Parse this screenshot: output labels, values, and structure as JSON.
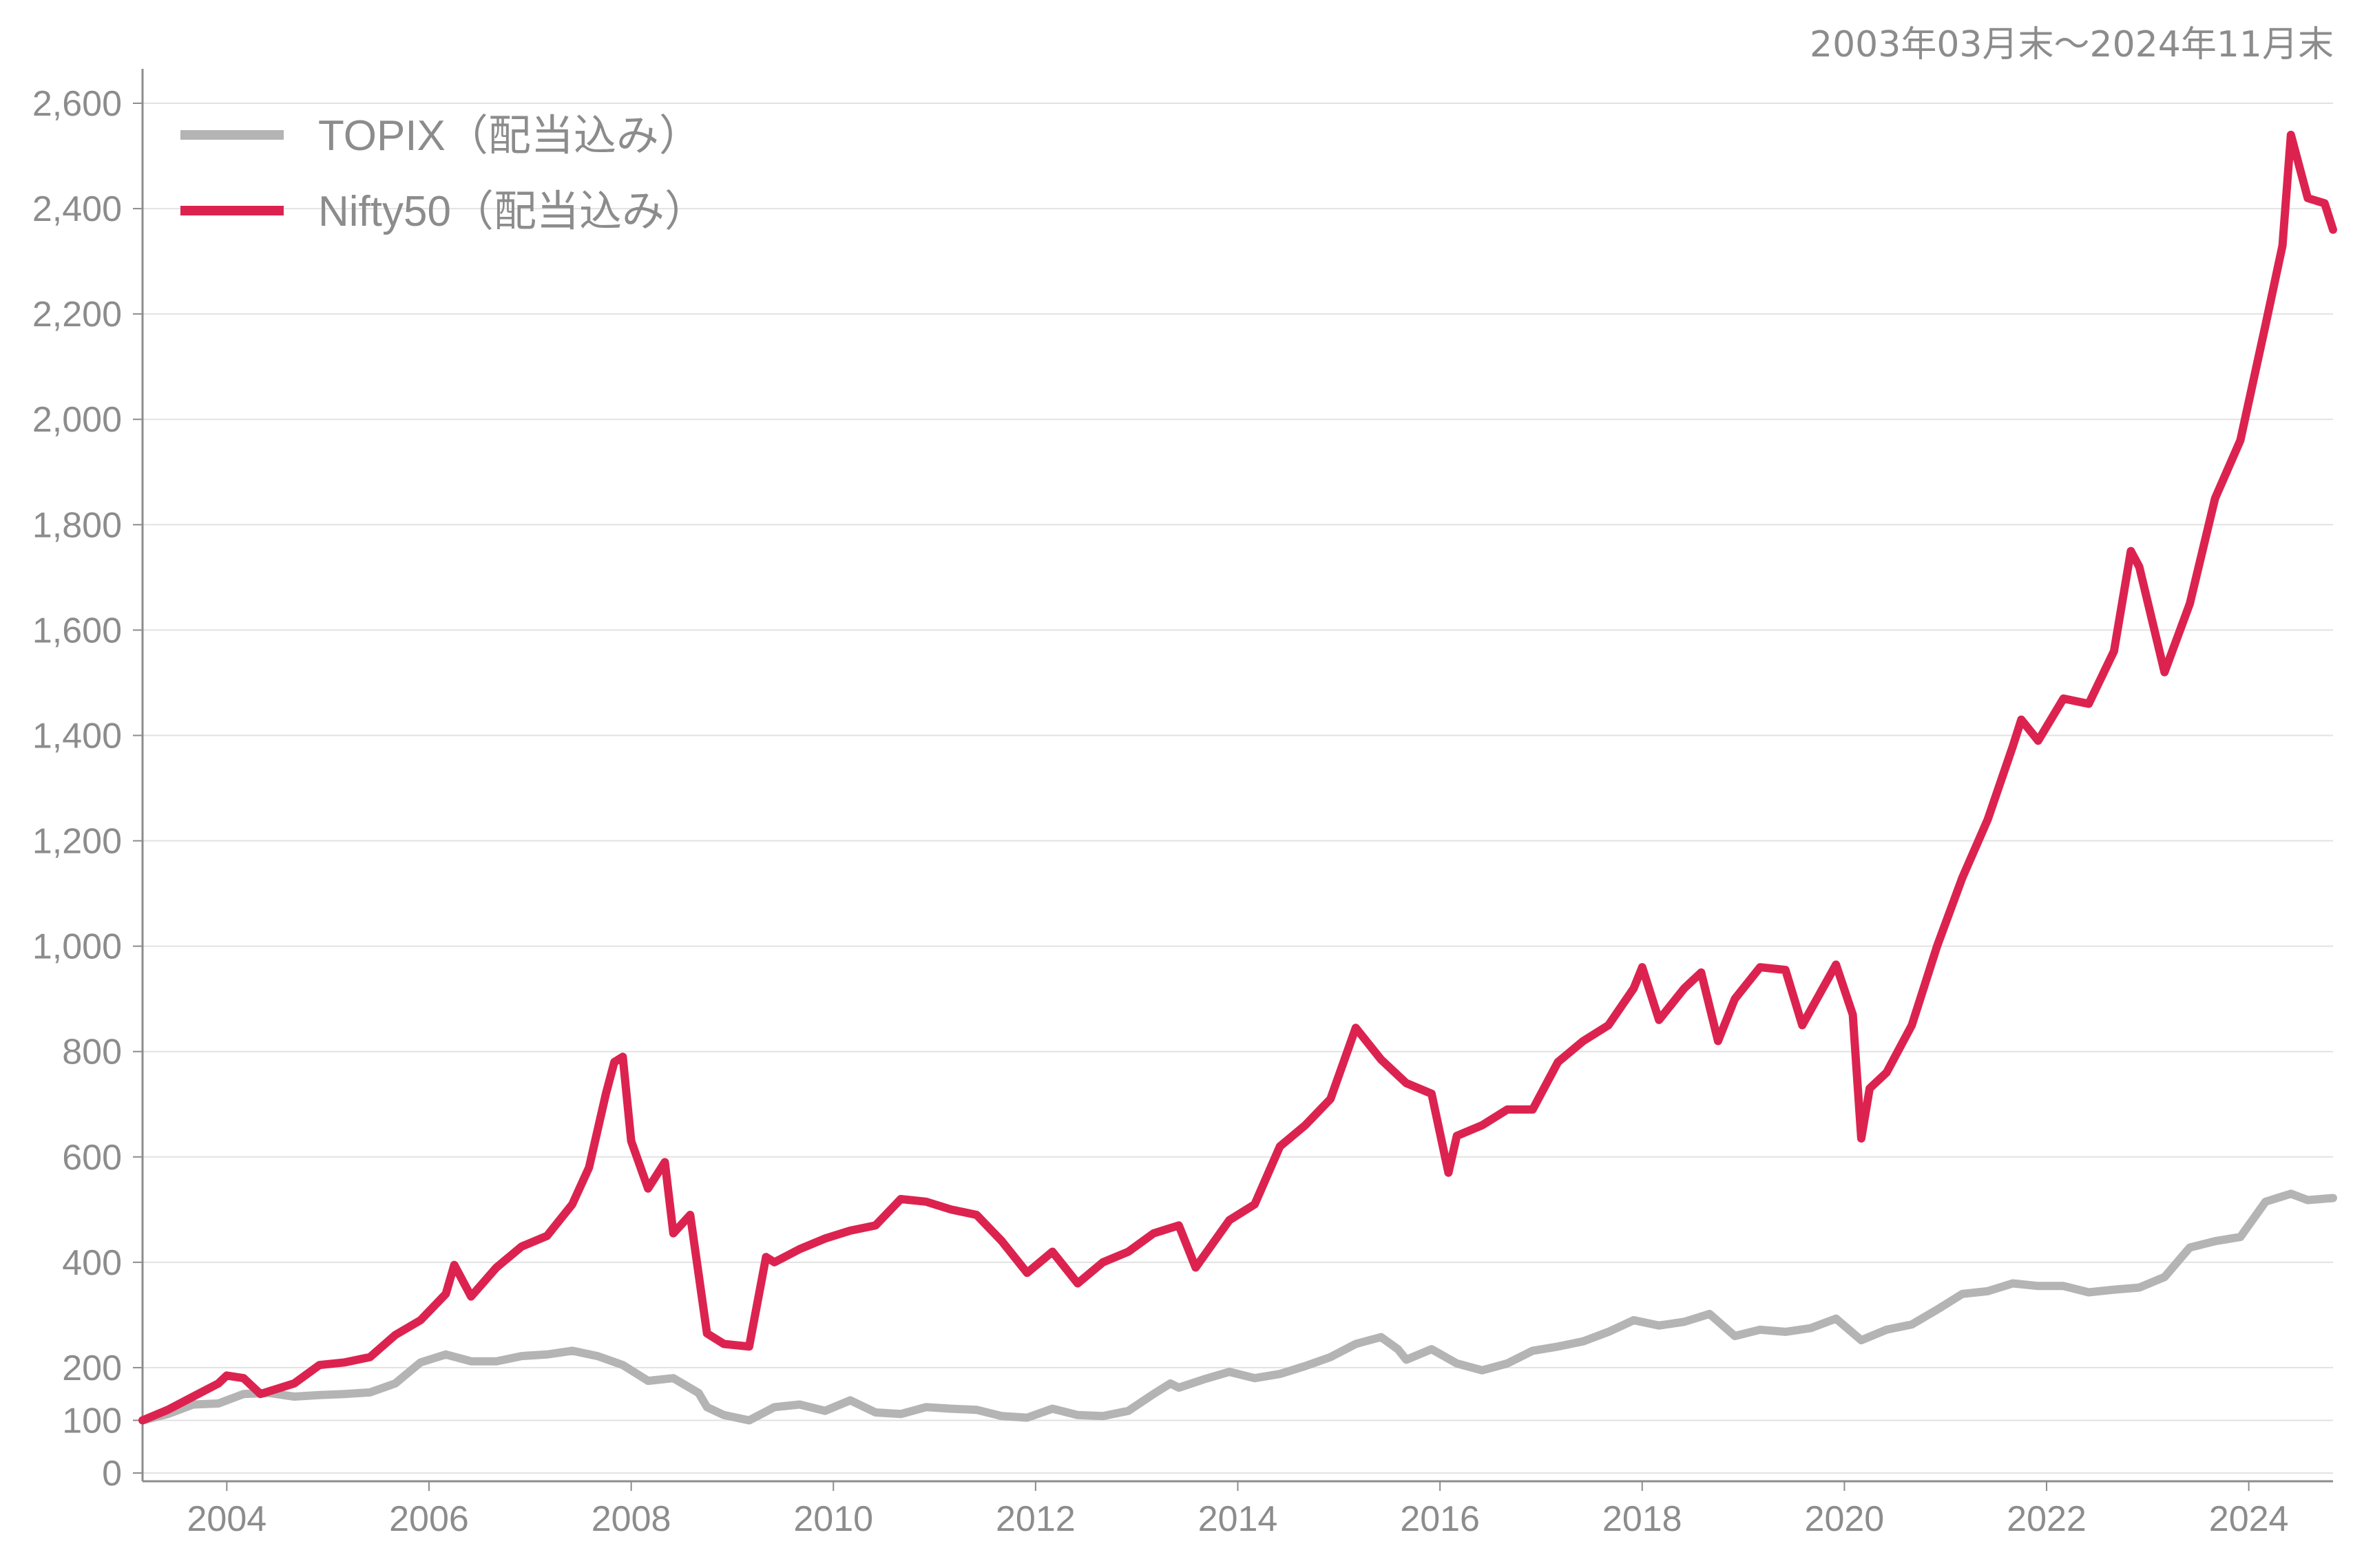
{
  "period_note": "2003年03月末〜2024年11月末",
  "colors": {
    "topix": "#b4b4b4",
    "nifty": "#dc2350",
    "grid": "#e2e2e2",
    "axis": "#8c8c8c",
    "text": "#8c8c8c"
  },
  "chart_data": {
    "type": "line",
    "title": "",
    "xlabel": "",
    "ylabel": "",
    "xlim": [
      "2003-03",
      "2024-11"
    ],
    "ylim": [
      0,
      2650
    ],
    "grid": "horizontal",
    "legend_position": "top-left",
    "y_ticks": [
      0,
      100,
      200,
      400,
      600,
      800,
      1000,
      1200,
      1400,
      1600,
      1800,
      2000,
      2200,
      2400,
      2600
    ],
    "y_tick_labels": [
      "0",
      "100",
      "200",
      "400",
      "600",
      "800",
      "1,000",
      "1,200",
      "1,400",
      "1,600",
      "1,800",
      "2,000",
      "2,200",
      "2,400",
      "2,600"
    ],
    "x_tick_labels": [
      "2004",
      "2006",
      "2008",
      "2010",
      "2012",
      "2014",
      "2016",
      "2018",
      "2020",
      "2022",
      "2024"
    ],
    "series": [
      {
        "name": "TOPIX（配当込み）",
        "color": "#b4b4b4",
        "points": [
          [
            "2003-03",
            100
          ],
          [
            "2003-06",
            112
          ],
          [
            "2003-09",
            130
          ],
          [
            "2003-12",
            132
          ],
          [
            "2004-03",
            150
          ],
          [
            "2004-06",
            152
          ],
          [
            "2004-09",
            145
          ],
          [
            "2004-12",
            148
          ],
          [
            "2005-03",
            150
          ],
          [
            "2005-06",
            153
          ],
          [
            "2005-09",
            170
          ],
          [
            "2005-12",
            210
          ],
          [
            "2006-03",
            225
          ],
          [
            "2006-06",
            212
          ],
          [
            "2006-09",
            212
          ],
          [
            "2006-12",
            222
          ],
          [
            "2007-03",
            225
          ],
          [
            "2007-06",
            232
          ],
          [
            "2007-09",
            222
          ],
          [
            "2007-12",
            205
          ],
          [
            "2008-03",
            175
          ],
          [
            "2008-06",
            180
          ],
          [
            "2008-09",
            152
          ],
          [
            "2008-10",
            125
          ],
          [
            "2008-12",
            110
          ],
          [
            "2009-03",
            100
          ],
          [
            "2009-06",
            125
          ],
          [
            "2009-09",
            130
          ],
          [
            "2009-12",
            118
          ],
          [
            "2010-03",
            138
          ],
          [
            "2010-06",
            115
          ],
          [
            "2010-09",
            112
          ],
          [
            "2010-12",
            125
          ],
          [
            "2011-03",
            122
          ],
          [
            "2011-06",
            120
          ],
          [
            "2011-09",
            108
          ],
          [
            "2011-12",
            105
          ],
          [
            "2012-03",
            122
          ],
          [
            "2012-06",
            110
          ],
          [
            "2012-09",
            108
          ],
          [
            "2012-12",
            118
          ],
          [
            "2013-03",
            150
          ],
          [
            "2013-05",
            170
          ],
          [
            "2013-06",
            162
          ],
          [
            "2013-09",
            178
          ],
          [
            "2013-12",
            192
          ],
          [
            "2014-03",
            180
          ],
          [
            "2014-06",
            188
          ],
          [
            "2014-09",
            203
          ],
          [
            "2014-12",
            220
          ],
          [
            "2015-03",
            245
          ],
          [
            "2015-06",
            258
          ],
          [
            "2015-08",
            235
          ],
          [
            "2015-09",
            215
          ],
          [
            "2015-12",
            235
          ],
          [
            "2016-03",
            208
          ],
          [
            "2016-06",
            195
          ],
          [
            "2016-09",
            208
          ],
          [
            "2016-12",
            232
          ],
          [
            "2017-03",
            240
          ],
          [
            "2017-06",
            250
          ],
          [
            "2017-09",
            268
          ],
          [
            "2017-12",
            290
          ],
          [
            "2018-03",
            280
          ],
          [
            "2018-06",
            287
          ],
          [
            "2018-09",
            302
          ],
          [
            "2018-12",
            260
          ],
          [
            "2019-03",
            272
          ],
          [
            "2019-06",
            268
          ],
          [
            "2019-09",
            275
          ],
          [
            "2019-12",
            293
          ],
          [
            "2020-03",
            252
          ],
          [
            "2020-06",
            272
          ],
          [
            "2020-09",
            282
          ],
          [
            "2020-12",
            310
          ],
          [
            "2021-03",
            340
          ],
          [
            "2021-06",
            345
          ],
          [
            "2021-09",
            360
          ],
          [
            "2021-12",
            355
          ],
          [
            "2022-03",
            355
          ],
          [
            "2022-06",
            343
          ],
          [
            "2022-09",
            348
          ],
          [
            "2022-12",
            352
          ],
          [
            "2023-03",
            372
          ],
          [
            "2023-06",
            428
          ],
          [
            "2023-09",
            440
          ],
          [
            "2023-12",
            448
          ],
          [
            "2024-03",
            515
          ],
          [
            "2024-06",
            530
          ],
          [
            "2024-08",
            518
          ],
          [
            "2024-11",
            522
          ]
        ]
      },
      {
        "name": "Nifty50（配当込み）",
        "color": "#dc2350",
        "points": [
          [
            "2003-03",
            100
          ],
          [
            "2003-06",
            120
          ],
          [
            "2003-09",
            145
          ],
          [
            "2003-12",
            170
          ],
          [
            "2004-01",
            185
          ],
          [
            "2004-03",
            180
          ],
          [
            "2004-05",
            150
          ],
          [
            "2004-06",
            155
          ],
          [
            "2004-09",
            170
          ],
          [
            "2004-12",
            205
          ],
          [
            "2005-03",
            210
          ],
          [
            "2005-06",
            220
          ],
          [
            "2005-09",
            262
          ],
          [
            "2005-12",
            290
          ],
          [
            "2006-03",
            340
          ],
          [
            "2006-04",
            395
          ],
          [
            "2006-06",
            335
          ],
          [
            "2006-09",
            390
          ],
          [
            "2006-12",
            430
          ],
          [
            "2007-03",
            450
          ],
          [
            "2007-06",
            510
          ],
          [
            "2007-08",
            580
          ],
          [
            "2007-10",
            720
          ],
          [
            "2007-11",
            780
          ],
          [
            "2007-12",
            790
          ],
          [
            "2008-01",
            630
          ],
          [
            "2008-03",
            540
          ],
          [
            "2008-05",
            590
          ],
          [
            "2008-06",
            455
          ],
          [
            "2008-08",
            490
          ],
          [
            "2008-10",
            265
          ],
          [
            "2008-12",
            245
          ],
          [
            "2009-03",
            240
          ],
          [
            "2009-05",
            410
          ],
          [
            "2009-06",
            400
          ],
          [
            "2009-09",
            425
          ],
          [
            "2009-12",
            445
          ],
          [
            "2010-03",
            460
          ],
          [
            "2010-06",
            470
          ],
          [
            "2010-09",
            520
          ],
          [
            "2010-12",
            515
          ],
          [
            "2011-03",
            500
          ],
          [
            "2011-06",
            490
          ],
          [
            "2011-09",
            440
          ],
          [
            "2011-12",
            380
          ],
          [
            "2012-03",
            420
          ],
          [
            "2012-06",
            360
          ],
          [
            "2012-09",
            400
          ],
          [
            "2012-12",
            420
          ],
          [
            "2013-03",
            455
          ],
          [
            "2013-06",
            470
          ],
          [
            "2013-08",
            390
          ],
          [
            "2013-12",
            480
          ],
          [
            "2014-03",
            510
          ],
          [
            "2014-06",
            620
          ],
          [
            "2014-09",
            660
          ],
          [
            "2014-12",
            710
          ],
          [
            "2015-03",
            845
          ],
          [
            "2015-06",
            785
          ],
          [
            "2015-09",
            740
          ],
          [
            "2015-12",
            720
          ],
          [
            "2016-02",
            570
          ],
          [
            "2016-03",
            640
          ],
          [
            "2016-06",
            660
          ],
          [
            "2016-09",
            690
          ],
          [
            "2016-12",
            690
          ],
          [
            "2017-03",
            780
          ],
          [
            "2017-06",
            820
          ],
          [
            "2017-09",
            850
          ],
          [
            "2017-12",
            920
          ],
          [
            "2018-01",
            960
          ],
          [
            "2018-03",
            860
          ],
          [
            "2018-06",
            920
          ],
          [
            "2018-08",
            950
          ],
          [
            "2018-10",
            820
          ],
          [
            "2018-12",
            900
          ],
          [
            "2019-03",
            960
          ],
          [
            "2019-06",
            955
          ],
          [
            "2019-08",
            850
          ],
          [
            "2019-12",
            965
          ],
          [
            "2020-02",
            870
          ],
          [
            "2020-03",
            635
          ],
          [
            "2020-04",
            730
          ],
          [
            "2020-06",
            760
          ],
          [
            "2020-09",
            850
          ],
          [
            "2020-12",
            1000
          ],
          [
            "2021-03",
            1130
          ],
          [
            "2021-06",
            1240
          ],
          [
            "2021-09",
            1380
          ],
          [
            "2021-10",
            1430
          ],
          [
            "2021-12",
            1390
          ],
          [
            "2022-03",
            1470
          ],
          [
            "2022-06",
            1460
          ],
          [
            "2022-09",
            1560
          ],
          [
            "2022-11",
            1750
          ],
          [
            "2022-12",
            1720
          ],
          [
            "2023-03",
            1520
          ],
          [
            "2023-06",
            1650
          ],
          [
            "2023-09",
            1850
          ],
          [
            "2023-12",
            1960
          ],
          [
            "2024-03",
            2180
          ],
          [
            "2024-05",
            2330
          ],
          [
            "2024-06",
            2540
          ],
          [
            "2024-08",
            2420
          ],
          [
            "2024-10",
            2410
          ],
          [
            "2024-11",
            2360
          ]
        ]
      }
    ]
  }
}
